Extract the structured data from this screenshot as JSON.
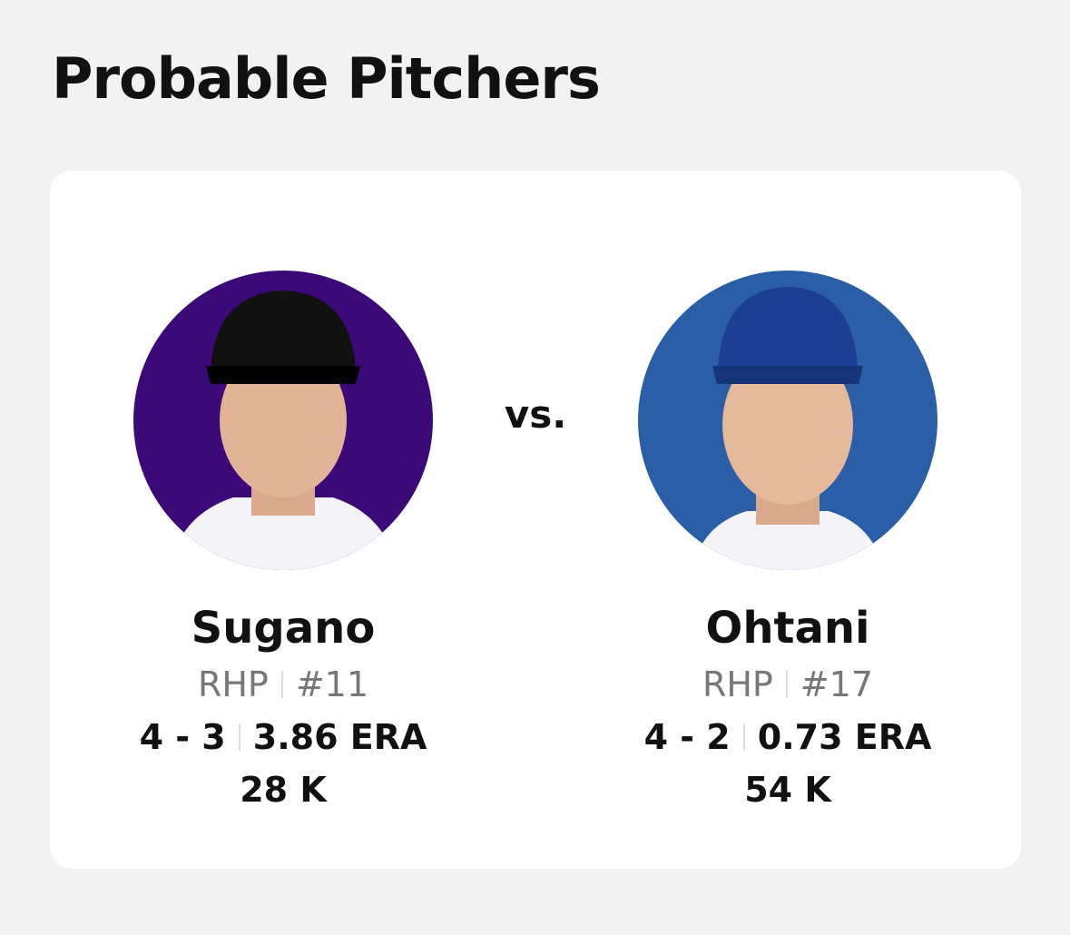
{
  "title": "Probable Pitchers",
  "vs_label": "vs.",
  "pitchers": [
    {
      "name": "Sugano",
      "throws": "RHP",
      "number": "#11",
      "record": "4 - 3",
      "era": "3.86 ERA",
      "strikeouts": "28 K"
    },
    {
      "name": "Ohtani",
      "throws": "RHP",
      "number": "#17",
      "record": "4 - 2",
      "era": "0.73 ERA",
      "strikeouts": "54 K"
    }
  ]
}
